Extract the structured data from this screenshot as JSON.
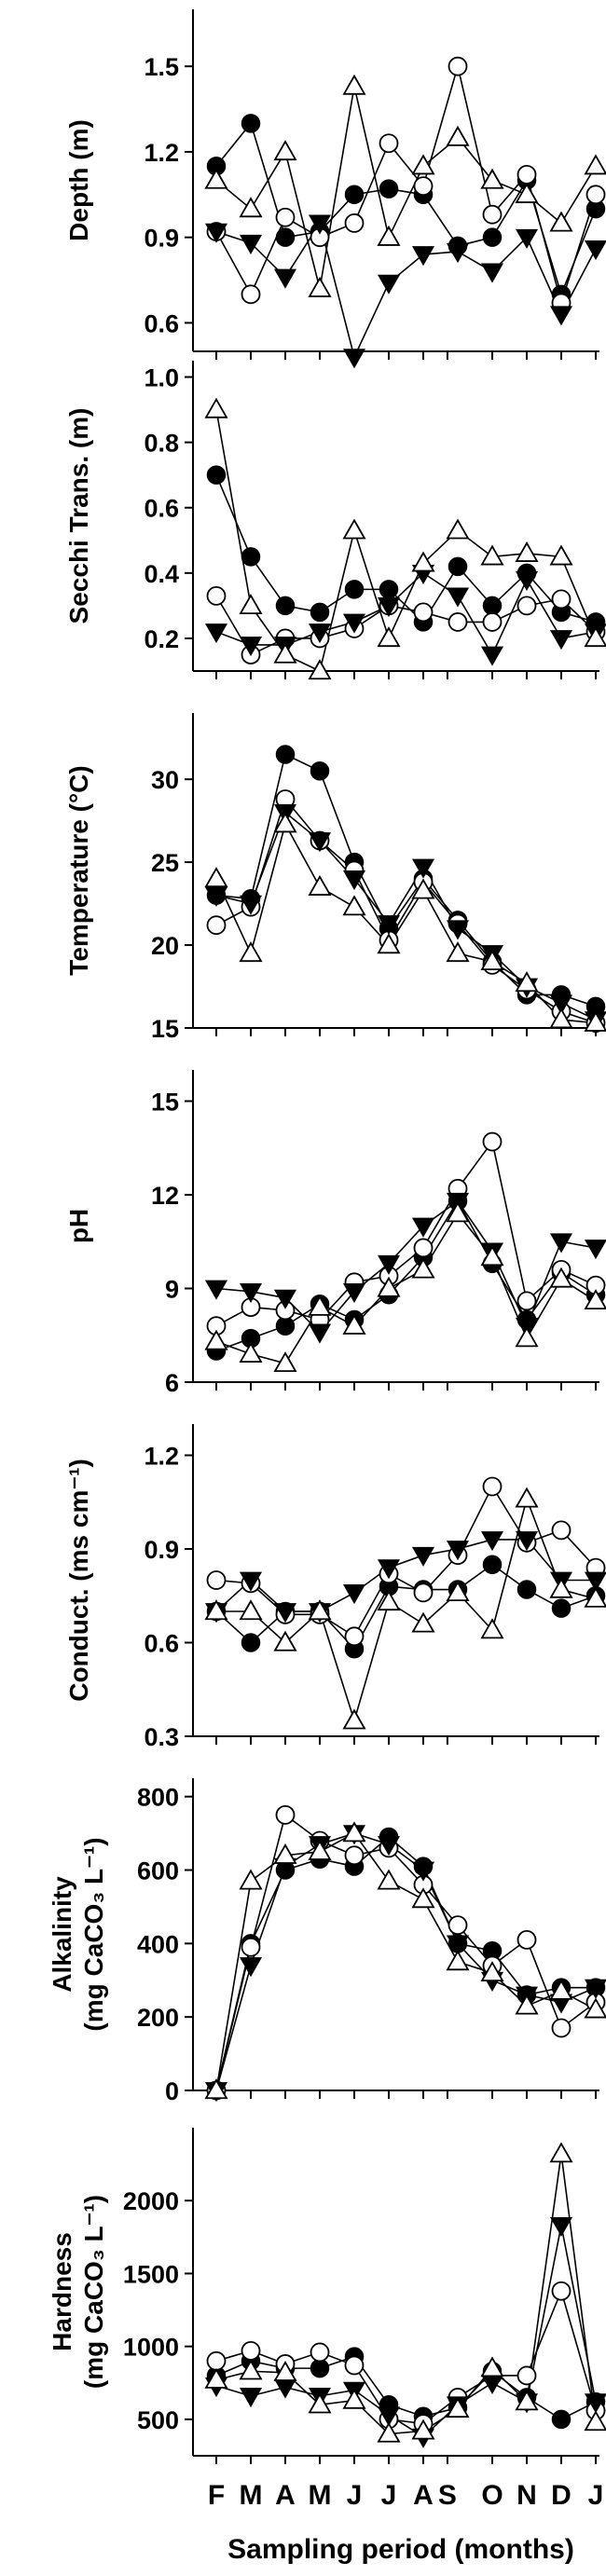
{
  "chart_data": {
    "type": "line",
    "x_categories": [
      "F",
      "M",
      "A",
      "M",
      "J",
      "J",
      "A",
      "S",
      "O",
      "N",
      "D",
      "J"
    ],
    "x_positions": [
      0,
      1,
      2,
      3,
      4,
      5,
      6,
      6.7,
      8,
      9,
      10,
      11
    ],
    "xlabel": "Sampling period (months)",
    "series_markers": [
      {
        "marker": "filled-circle"
      },
      {
        "marker": "open-circle"
      },
      {
        "marker": "filled-triangle-down"
      },
      {
        "marker": "open-triangle-up"
      }
    ],
    "panels": [
      {
        "ylabel_lines": [
          "Depth (m)"
        ],
        "ylim": [
          0.5,
          1.7
        ],
        "yticks": [
          0.6,
          0.9,
          1.2,
          1.5
        ],
        "tick_labels": [
          "0.6",
          "0.9",
          "1.2",
          "1.5"
        ],
        "series": [
          {
            "marker": "filled-circle",
            "x": [
              0,
              1,
              2,
              3,
              4,
              5,
              6,
              7,
              8,
              9,
              10,
              11
            ],
            "y": [
              1.15,
              1.3,
              0.9,
              0.92,
              1.05,
              1.07,
              1.05,
              0.87,
              0.9,
              1.1,
              0.7,
              1.0
            ]
          },
          {
            "marker": "open-circle",
            "x": [
              0,
              1,
              2,
              3,
              4,
              5,
              6,
              7,
              8,
              9,
              10,
              11
            ],
            "y": [
              0.92,
              0.7,
              0.97,
              0.9,
              0.95,
              1.23,
              1.08,
              1.5,
              0.98,
              1.12,
              0.67,
              1.05
            ]
          },
          {
            "marker": "filled-triangle-down",
            "x": [
              0,
              1,
              2,
              3,
              4,
              5,
              6,
              7,
              8,
              9,
              10,
              11
            ],
            "y": [
              0.92,
              0.88,
              0.76,
              0.95,
              0.48,
              0.74,
              0.84,
              0.85,
              0.78,
              0.9,
              0.63,
              0.86
            ]
          },
          {
            "marker": "open-triangle-up",
            "x": [
              0,
              1,
              2,
              3,
              4,
              5,
              6,
              7,
              8,
              9,
              10,
              11
            ],
            "y": [
              1.1,
              1.0,
              1.2,
              0.72,
              1.43,
              0.9,
              1.15,
              1.25,
              1.1,
              1.05,
              0.95,
              1.15
            ]
          }
        ]
      },
      {
        "ylabel_lines": [
          "Secchi Trans. (m)"
        ],
        "ylim": [
          0.1,
          1.05
        ],
        "yticks": [
          0.2,
          0.4,
          0.6,
          0.8,
          1.0
        ],
        "tick_labels": [
          "0.2",
          "0.4",
          "0.6",
          "0.8",
          "1.0"
        ],
        "series": [
          {
            "marker": "filled-circle",
            "x": [
              0,
              1,
              2,
              3,
              4,
              5,
              6,
              7,
              8,
              9,
              10,
              11
            ],
            "y": [
              0.7,
              0.45,
              0.3,
              0.28,
              0.35,
              0.35,
              0.25,
              0.42,
              0.3,
              0.4,
              0.28,
              0.25
            ]
          },
          {
            "marker": "open-circle",
            "x": [
              0,
              1,
              2,
              3,
              4,
              5,
              6,
              7,
              8,
              9,
              10,
              11
            ],
            "y": [
              0.33,
              0.15,
              0.2,
              0.2,
              0.23,
              0.3,
              0.28,
              0.25,
              0.25,
              0.3,
              0.32,
              0.22
            ]
          },
          {
            "marker": "filled-triangle-down",
            "x": [
              0,
              1,
              2,
              3,
              4,
              5,
              6,
              7,
              8,
              9,
              10,
              11
            ],
            "y": [
              0.22,
              0.18,
              0.18,
              0.22,
              0.25,
              0.3,
              0.4,
              0.33,
              0.15,
              0.38,
              0.2,
              0.22
            ]
          },
          {
            "marker": "open-triangle-up",
            "x": [
              0,
              1,
              2,
              3,
              4,
              5,
              6,
              7,
              8,
              9,
              10,
              11
            ],
            "y": [
              0.9,
              0.3,
              0.15,
              0.1,
              0.53,
              0.2,
              0.43,
              0.53,
              0.45,
              0.46,
              0.45,
              0.2
            ]
          }
        ]
      },
      {
        "ylabel_lines": [
          "Temperature (°C)"
        ],
        "ylim": [
          15,
          34
        ],
        "yticks": [
          15,
          20,
          25,
          30
        ],
        "tick_labels": [
          "15",
          "20",
          "25",
          "30"
        ],
        "series": [
          {
            "marker": "filled-circle",
            "x": [
              0,
              1,
              2,
              3,
              4,
              5,
              6,
              7,
              8,
              9,
              10,
              11
            ],
            "y": [
              23.0,
              22.8,
              31.5,
              30.5,
              25.0,
              21.0,
              24.0,
              21.5,
              19.0,
              17.0,
              17.0,
              16.3
            ]
          },
          {
            "marker": "open-circle",
            "x": [
              0,
              1,
              2,
              3,
              4,
              5,
              6,
              7,
              8,
              9,
              10,
              11
            ],
            "y": [
              21.2,
              22.3,
              28.8,
              26.3,
              24.5,
              20.3,
              23.8,
              21.3,
              18.8,
              17.3,
              16.0,
              15.3
            ]
          },
          {
            "marker": "filled-triangle-down",
            "x": [
              0,
              1,
              2,
              3,
              4,
              5,
              6,
              7,
              8,
              9,
              10,
              11
            ],
            "y": [
              23.0,
              22.5,
              28.0,
              26.3,
              24.0,
              21.3,
              24.7,
              21.0,
              19.5,
              17.5,
              16.5,
              15.5
            ]
          },
          {
            "marker": "open-triangle-up",
            "x": [
              0,
              1,
              2,
              3,
              4,
              5,
              6,
              7,
              8,
              9,
              10,
              11
            ],
            "y": [
              24.0,
              19.5,
              27.3,
              23.5,
              22.3,
              20.0,
              23.3,
              19.5,
              19.0,
              17.7,
              15.5,
              15.3
            ]
          }
        ]
      },
      {
        "ylabel_lines": [
          "pH"
        ],
        "ylim": [
          6,
          16
        ],
        "yticks": [
          6,
          9,
          12,
          15
        ],
        "tick_labels": [
          "6",
          "9",
          "12",
          "15"
        ],
        "series": [
          {
            "marker": "filled-circle",
            "x": [
              0,
              1,
              2,
              3,
              4,
              5,
              6,
              7,
              8,
              9,
              10,
              11
            ],
            "y": [
              7.0,
              7.4,
              7.8,
              8.5,
              8.0,
              8.8,
              10.0,
              11.8,
              9.8,
              8.0,
              9.5,
              8.8
            ]
          },
          {
            "marker": "open-circle",
            "x": [
              0,
              1,
              2,
              3,
              4,
              5,
              6,
              7,
              8,
              9,
              10,
              11
            ],
            "y": [
              7.8,
              8.4,
              8.3,
              8.0,
              9.2,
              9.4,
              10.3,
              12.2,
              13.7,
              8.6,
              9.6,
              9.1
            ]
          },
          {
            "marker": "filled-triangle-down",
            "x": [
              0,
              1,
              2,
              3,
              4,
              5,
              6,
              7,
              8,
              9,
              10,
              11
            ],
            "y": [
              9.0,
              8.9,
              8.7,
              7.6,
              8.9,
              9.8,
              11.0,
              11.8,
              10.2,
              7.8,
              10.5,
              10.3
            ]
          },
          {
            "marker": "open-triangle-up",
            "x": [
              0,
              1,
              2,
              3,
              4,
              5,
              6,
              7,
              8,
              9,
              10,
              11
            ],
            "y": [
              7.3,
              6.9,
              6.6,
              8.4,
              7.8,
              9.0,
              9.6,
              11.4,
              10.0,
              7.4,
              9.3,
              8.6
            ]
          }
        ]
      },
      {
        "ylabel_lines": [
          "Conduct. (ms cm⁻¹)"
        ],
        "ylim": [
          0.3,
          1.3
        ],
        "yticks": [
          0.3,
          0.6,
          0.9,
          1.2
        ],
        "tick_labels": [
          "0.3",
          "0.6",
          "0.9",
          "1.2"
        ],
        "series": [
          {
            "marker": "filled-circle",
            "x": [
              0,
              1,
              2,
              3,
              4,
              5,
              6,
              7,
              8,
              9,
              10,
              11
            ],
            "y": [
              0.7,
              0.6,
              0.7,
              0.7,
              0.58,
              0.78,
              0.77,
              0.77,
              0.85,
              0.77,
              0.71,
              0.75
            ]
          },
          {
            "marker": "open-circle",
            "x": [
              0,
              1,
              2,
              3,
              4,
              5,
              6,
              7,
              8,
              9,
              10,
              11
            ],
            "y": [
              0.8,
              0.79,
              0.69,
              0.69,
              0.62,
              0.82,
              0.76,
              0.88,
              1.1,
              0.92,
              0.96,
              0.84
            ]
          },
          {
            "marker": "filled-triangle-down",
            "x": [
              0,
              1,
              2,
              3,
              4,
              5,
              6,
              7,
              8,
              9,
              10,
              11
            ],
            "y": [
              0.7,
              0.8,
              0.7,
              0.7,
              0.76,
              0.84,
              0.88,
              0.9,
              0.93,
              0.93,
              0.8,
              0.8
            ]
          },
          {
            "marker": "open-triangle-up",
            "x": [
              0,
              1,
              2,
              3,
              4,
              5,
              6,
              7,
              8,
              9,
              10,
              11
            ],
            "y": [
              0.7,
              0.7,
              0.6,
              0.7,
              0.35,
              0.73,
              0.66,
              0.76,
              0.64,
              1.06,
              0.77,
              0.74
            ]
          }
        ]
      },
      {
        "ylabel_lines": [
          "Alkalinity",
          "(mg CaCO₃ L⁻¹)"
        ],
        "ylim": [
          0,
          850
        ],
        "yticks": [
          0,
          200,
          400,
          600,
          800
        ],
        "tick_labels": [
          "0",
          "200",
          "400",
          "600",
          "800"
        ],
        "series": [
          {
            "marker": "filled-circle",
            "x": [
              0,
              1,
              2,
              3,
              4,
              5,
              6,
              7,
              8,
              9,
              10,
              11
            ],
            "y": [
              0,
              400,
              600,
              630,
              610,
              690,
              610,
              400,
              380,
              260,
              280,
              280
            ]
          },
          {
            "marker": "open-circle",
            "x": [
              0,
              1,
              2,
              3,
              4,
              5,
              6,
              7,
              8,
              9,
              10,
              11
            ],
            "y": [
              0,
              390,
              750,
              680,
              640,
              660,
              560,
              450,
              340,
              410,
              170,
              240
            ]
          },
          {
            "marker": "filled-triangle-down",
            "x": [
              0,
              1,
              2,
              3,
              4,
              5,
              6,
              7,
              8,
              9,
              10,
              11
            ],
            "y": [
              0,
              340,
              610,
              670,
              700,
              670,
              600,
              400,
              300,
              260,
              240,
              280
            ]
          },
          {
            "marker": "open-triangle-up",
            "x": [
              0,
              1,
              2,
              3,
              4,
              5,
              6,
              7,
              8,
              9,
              10,
              11
            ],
            "y": [
              0,
              570,
              640,
              650,
              700,
              570,
              520,
              350,
              320,
              230,
              270,
              220
            ]
          }
        ]
      },
      {
        "ylabel_lines": [
          "Hardness",
          "(mg CaCO₃ L⁻¹)"
        ],
        "ylim": [
          250,
          2500
        ],
        "yticks": [
          500,
          1000,
          1500,
          2000
        ],
        "tick_labels": [
          "500",
          "1000",
          "1500",
          "2000"
        ],
        "series": [
          {
            "marker": "filled-circle",
            "x": [
              0,
              1,
              2,
              3,
              4,
              5,
              6,
              7,
              8,
              9,
              10,
              11
            ],
            "y": [
              800,
              900,
              850,
              850,
              930,
              600,
              520,
              580,
              830,
              650,
              500,
              620
            ]
          },
          {
            "marker": "open-circle",
            "x": [
              0,
              1,
              2,
              3,
              4,
              5,
              6,
              7,
              8,
              9,
              10,
              11
            ],
            "y": [
              900,
              970,
              880,
              960,
              870,
              500,
              470,
              650,
              800,
              800,
              1380,
              560
            ]
          },
          {
            "marker": "filled-triangle-down",
            "x": [
              0,
              1,
              2,
              3,
              4,
              5,
              6,
              7,
              8,
              9,
              10,
              11
            ],
            "y": [
              730,
              660,
              720,
              660,
              700,
              530,
              380,
              600,
              750,
              620,
              1830,
              620
            ]
          },
          {
            "marker": "open-triangle-up",
            "x": [
              0,
              1,
              2,
              3,
              4,
              5,
              6,
              7,
              8,
              9,
              10,
              11
            ],
            "y": [
              770,
              830,
              820,
              600,
              630,
              400,
              420,
              570,
              850,
              620,
              2320,
              480
            ]
          }
        ]
      }
    ]
  }
}
